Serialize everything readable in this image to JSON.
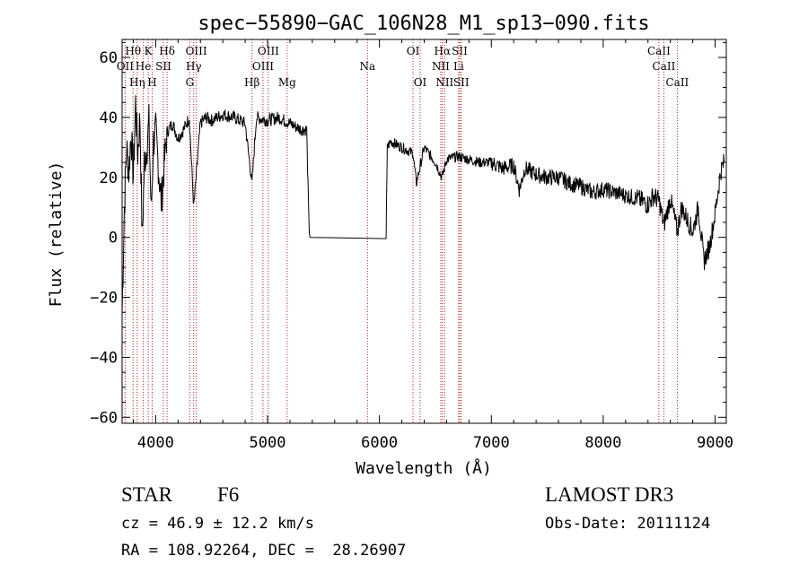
{
  "chart_data": {
    "type": "line",
    "title": "spec−55890−GAC_106N28_M1_sp13−090.fits",
    "xlabel": "Wavelength (Å)",
    "ylabel": "Flux (relative)",
    "xlim": [
      3700,
      9100
    ],
    "ylim": [
      -62,
      66
    ],
    "xticks": [
      4000,
      5000,
      6000,
      7000,
      8000,
      9000
    ],
    "yticks": [
      -60,
      -40,
      -20,
      0,
      20,
      40,
      60
    ],
    "ytick_labels": [
      "−60",
      "−40",
      "−20",
      "0",
      "20",
      "40",
      "60"
    ],
    "series": [
      {
        "name": "flux",
        "x": [
          3700,
          3720,
          3740,
          3760,
          3780,
          3800,
          3820,
          3840,
          3860,
          3880,
          3900,
          3920,
          3940,
          3960,
          3980,
          4000,
          4050,
          4100,
          4150,
          4200,
          4250,
          4300,
          4340,
          4400,
          4450,
          4500,
          4600,
          4700,
          4800,
          4861,
          4900,
          5000,
          5100,
          5200,
          5300,
          5350,
          5370,
          5380,
          6060,
          6070,
          6100,
          6200,
          6300,
          6330,
          6400,
          6500,
          6560,
          6600,
          6700,
          6800,
          6900,
          7000,
          7100,
          7200,
          7250,
          7300,
          7400,
          7500,
          7600,
          7700,
          7800,
          7900,
          8000,
          8100,
          8200,
          8300,
          8400,
          8450,
          8500,
          8542,
          8600,
          8662,
          8700,
          8750,
          8800,
          8850,
          8900,
          8950,
          9000,
          9050,
          9080
        ],
        "y": [
          -25,
          10,
          30,
          22,
          35,
          20,
          45,
          28,
          40,
          -1,
          25,
          30,
          38,
          8,
          32,
          35,
          12,
          35,
          38,
          33,
          36,
          40,
          10,
          38,
          40,
          39,
          41,
          40,
          38,
          18,
          40,
          39,
          40,
          38,
          36,
          36,
          4,
          0,
          0,
          30,
          32,
          30,
          28,
          18,
          30,
          25,
          20,
          26,
          27,
          26,
          25,
          25,
          23,
          24,
          16,
          23,
          21,
          20,
          20,
          18,
          17,
          15,
          16,
          15,
          14,
          13,
          11,
          14,
          12,
          4,
          13,
          2,
          10,
          6,
          2,
          10,
          -8,
          -3,
          8,
          22,
          25
        ],
        "color": "#000000"
      }
    ],
    "line_markers": [
      {
        "label": "Hθ",
        "x": 3798,
        "row": 1
      },
      {
        "label": "K",
        "x": 3934,
        "row": 1
      },
      {
        "label": "Hδ",
        "x": 4102,
        "row": 1
      },
      {
        "label": "OIII",
        "x": 4363,
        "row": 1
      },
      {
        "label": "OIII",
        "x": 5007,
        "row": 1
      },
      {
        "label": "OI",
        "x": 6300,
        "row": 1
      },
      {
        "label": "Hα",
        "x": 6563,
        "row": 1
      },
      {
        "label": "SII",
        "x": 6717,
        "row": 1
      },
      {
        "label": "CaII",
        "x": 8498,
        "row": 1
      },
      {
        "label": "OII",
        "x": 3727,
        "row": 2
      },
      {
        "label": "He",
        "x": 3889,
        "row": 2
      },
      {
        "label": "SII",
        "x": 4069,
        "row": 2
      },
      {
        "label": "Hγ",
        "x": 4340,
        "row": 2
      },
      {
        "label": "OIII",
        "x": 4959,
        "row": 2
      },
      {
        "label": "Na",
        "x": 5893,
        "row": 2
      },
      {
        "label": "NII",
        "x": 6548,
        "row": 2
      },
      {
        "label": "Li",
        "x": 6708,
        "row": 2
      },
      {
        "label": "CaII",
        "x": 8542,
        "row": 2
      },
      {
        "label": "Hη",
        "x": 3835,
        "row": 3
      },
      {
        "label": "H",
        "x": 3969,
        "row": 3
      },
      {
        "label": "G",
        "x": 4305,
        "row": 3
      },
      {
        "label": "Hβ",
        "x": 4861,
        "row": 3
      },
      {
        "label": "Mg",
        "x": 5175,
        "row": 3
      },
      {
        "label": "OI",
        "x": 6364,
        "row": 3
      },
      {
        "label": "NII",
        "x": 6583,
        "row": 3
      },
      {
        "label": "SII",
        "x": 6731,
        "row": 3
      },
      {
        "label": "CaII",
        "x": 8662,
        "row": 3
      }
    ],
    "marker_color": "#b22222"
  },
  "info": {
    "object_class": "STAR",
    "subclass": "F6",
    "survey": "LAMOST DR3",
    "cz": "cz = 46.9 ± 12.2 km/s",
    "obs_date": "Obs-Date: 20111124",
    "coords": "RA = 108.92264, DEC =  28.26907"
  }
}
